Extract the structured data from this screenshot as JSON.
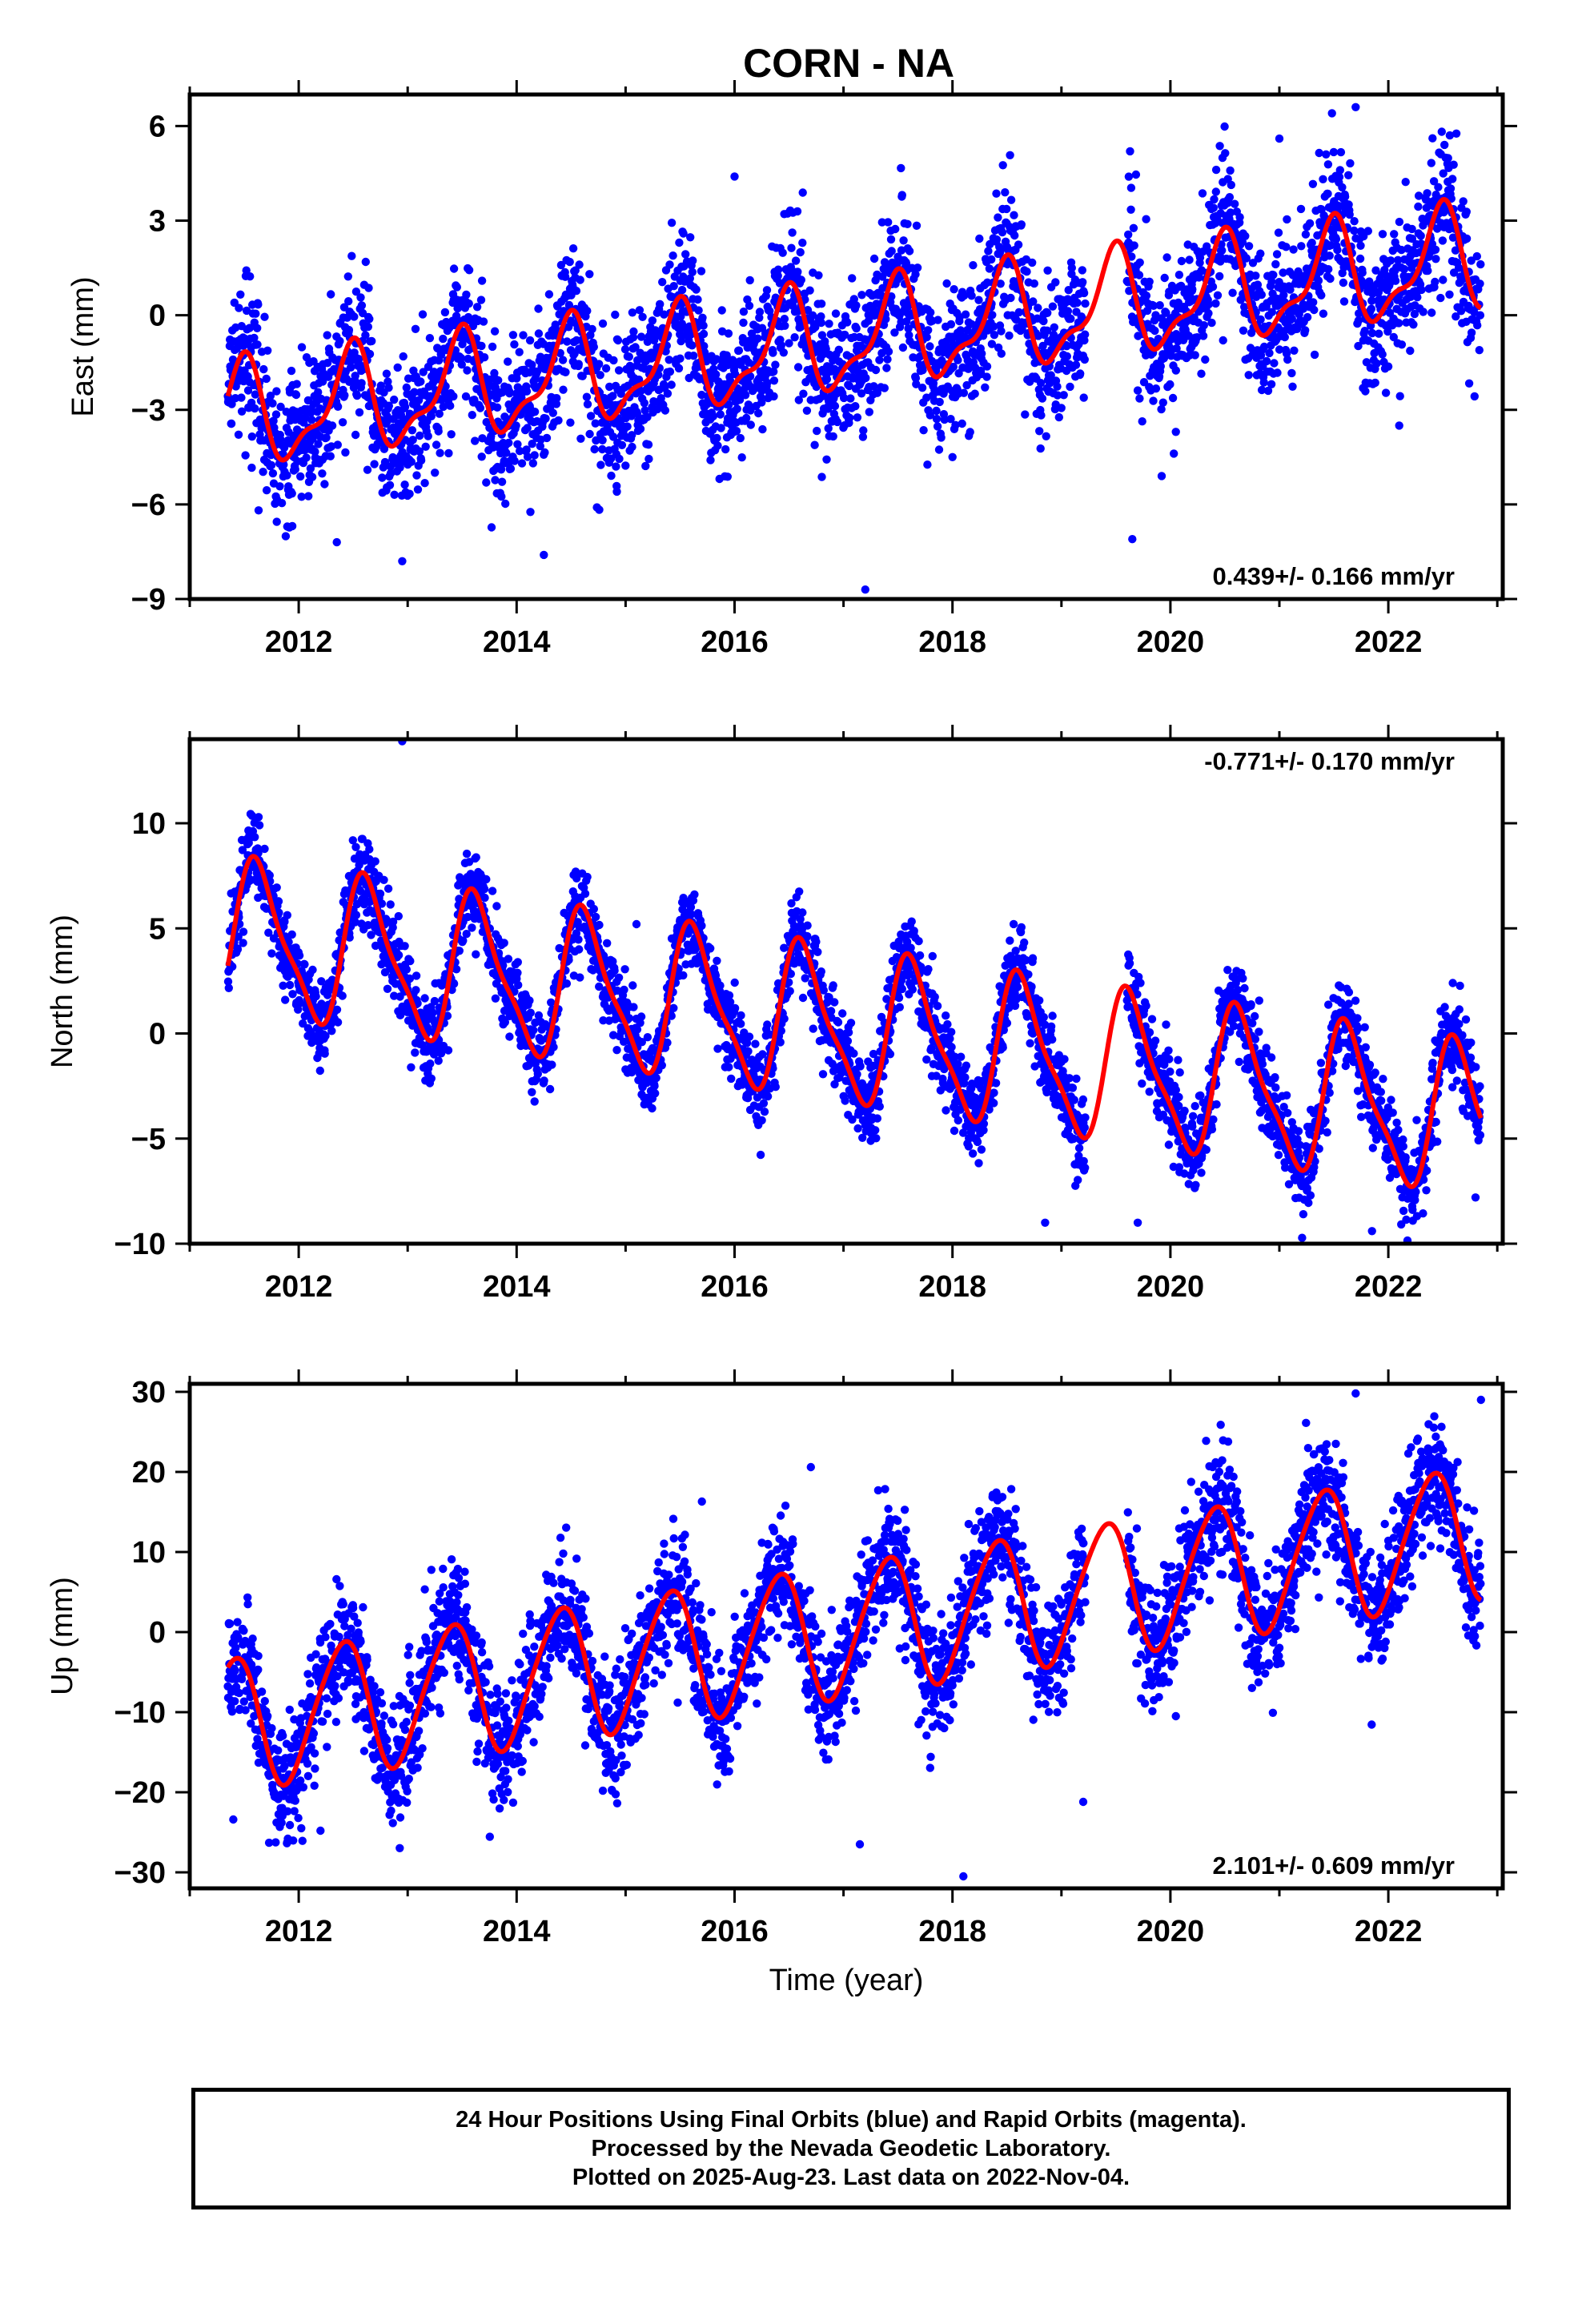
{
  "title": "CORN - NA",
  "xlabel": "Time (year)",
  "colors": {
    "points": "#0000ff",
    "fit": "#ff0000",
    "axes": "#000000"
  },
  "footer": {
    "line1": "24 Hour Positions Using Final Orbits (blue) and Rapid Orbits (magenta).",
    "line2": "Processed by the Nevada Geodetic Laboratory.",
    "line3": "Plotted on 2025-Aug-23. Last data on 2022-Nov-04."
  },
  "chart_data": [
    {
      "type": "scatter",
      "component": "east",
      "ylabel": "East (mm)",
      "xlim": [
        2011.0,
        2023.05
      ],
      "ylim": [
        -9,
        7
      ],
      "x_ticks": [
        2012,
        2014,
        2016,
        2018,
        2020,
        2022
      ],
      "y_ticks": [
        -9,
        -6,
        -3,
        0,
        3,
        6
      ],
      "rate_label": "0.439+/- 0.166 mm/yr",
      "rate_label_position": "bottom-right",
      "series": [
        {
          "kind": "fit",
          "coef": {
            "t0": 2017.0,
            "a": -0.8,
            "b": 0.439,
            "c1": -1.5,
            "s1": 0.3,
            "c2": 0.55,
            "s2": 0.25
          },
          "x_range": [
            2011.35,
            2022.85
          ]
        },
        {
          "kind": "points",
          "x_range": [
            2011.35,
            2022.85
          ],
          "noise_sd": 1.15,
          "gap": [
            2019.22,
            2019.6
          ]
        }
      ],
      "outliers": [
        {
          "x": 2017.2,
          "y": -8.7
        },
        {
          "x": 2012.95,
          "y": -7.8
        },
        {
          "x": 2014.25,
          "y": -7.6
        },
        {
          "x": 2019.65,
          "y": -7.1
        },
        {
          "x": 2019.92,
          "y": -5.1
        },
        {
          "x": 2020.05,
          "y": -3.7
        },
        {
          "x": 2018.0,
          "y": -4.5
        },
        {
          "x": 2022.1,
          "y": -3.5
        },
        {
          "x": 2021.7,
          "y": 6.6
        },
        {
          "x": 2016.0,
          "y": 4.4
        },
        {
          "x": 2019.63,
          "y": 5.2
        },
        {
          "x": 2021.0,
          "y": 5.6
        },
        {
          "x": 2012.35,
          "y": -7.2
        }
      ]
    },
    {
      "type": "scatter",
      "component": "north",
      "ylabel": "North (mm)",
      "xlim": [
        2011.0,
        2023.05
      ],
      "ylim": [
        -10,
        14
      ],
      "x_ticks": [
        2012,
        2014,
        2016,
        2018,
        2020,
        2022
      ],
      "y_ticks": [
        -10,
        -5,
        0,
        5,
        10
      ],
      "rate_label": "-0.771+/- 0.170 mm/yr",
      "rate_label_position": "top-right",
      "series": [
        {
          "kind": "fit",
          "coef": {
            "t0": 2017.0,
            "a": 0.3,
            "b": -0.771,
            "c1": -2.2,
            "s1": -2.6,
            "c2": 0.8,
            "s2": 0.4
          },
          "x_range": [
            2011.35,
            2022.85
          ]
        },
        {
          "kind": "points",
          "x_range": [
            2011.35,
            2022.85
          ],
          "noise_sd": 1.0,
          "gap": [
            2019.22,
            2019.6
          ]
        }
      ],
      "outliers": [
        {
          "x": 2012.95,
          "y": 13.9
        },
        {
          "x": 2018.85,
          "y": -9.0
        },
        {
          "x": 2019.7,
          "y": -9.0
        },
        {
          "x": 2021.85,
          "y": -9.4
        },
        {
          "x": 2015.1,
          "y": 5.2
        },
        {
          "x": 2022.8,
          "y": -7.8
        }
      ]
    },
    {
      "type": "scatter",
      "component": "up",
      "ylabel": "Up (mm)",
      "xlim": [
        2011.0,
        2023.05
      ],
      "ylim": [
        -32,
        31
      ],
      "x_ticks": [
        2012,
        2014,
        2016,
        2018,
        2020,
        2022
      ],
      "y_ticks": [
        -30,
        -20,
        -10,
        0,
        10,
        20,
        30
      ],
      "rate_label": "2.101+/- 0.609 mm/yr",
      "rate_label_position": "bottom-right",
      "series": [
        {
          "kind": "fit",
          "coef": {
            "t0": 2017.0,
            "a": 0.3,
            "b": 2.101,
            "c1": -6.5,
            "s1": 5.0,
            "c2": 0.8,
            "s2": 0.5
          },
          "x_range": [
            2011.35,
            2022.85
          ]
        },
        {
          "kind": "points",
          "x_range": [
            2011.35,
            2022.85
          ],
          "noise_sd": 3.8,
          "gap": [
            2019.22,
            2019.6
          ]
        }
      ],
      "outliers": [
        {
          "x": 2018.1,
          "y": -30.5
        },
        {
          "x": 2017.15,
          "y": -26.5
        },
        {
          "x": 2011.9,
          "y": -25.8
        },
        {
          "x": 2012.2,
          "y": -24.8
        },
        {
          "x": 2011.4,
          "y": -23.4
        },
        {
          "x": 2019.2,
          "y": -21.2
        },
        {
          "x": 2021.7,
          "y": 29.8
        },
        {
          "x": 2022.85,
          "y": 29.0
        },
        {
          "x": 2015.7,
          "y": 16.3
        },
        {
          "x": 2016.7,
          "y": 20.6
        },
        {
          "x": 2020.05,
          "y": -10.5
        }
      ]
    }
  ]
}
